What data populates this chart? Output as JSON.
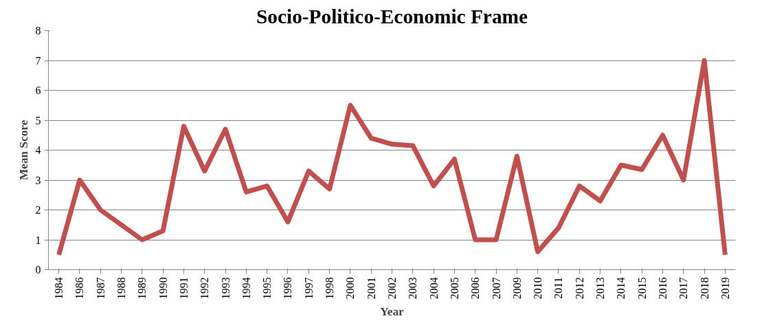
{
  "chart_data": {
    "type": "line",
    "title": "Socio-Politico-Economic Frame",
    "xlabel": "Year",
    "ylabel": "Mean Score",
    "categories": [
      "1984",
      "1986",
      "1987",
      "1988",
      "1989",
      "1990",
      "1991",
      "1992",
      "1993",
      "1994",
      "1995",
      "1996",
      "1997",
      "1998",
      "2000",
      "2001",
      "2002",
      "2003",
      "2004",
      "2005",
      "2006",
      "2007",
      "2009",
      "2010",
      "2011",
      "2012",
      "2013",
      "2014",
      "2015",
      "2016",
      "2017",
      "2018",
      "2019"
    ],
    "series": [
      {
        "color": "#c0504d",
        "values": [
          0.5,
          3.0,
          2.0,
          1.5,
          1.0,
          1.3,
          4.8,
          3.3,
          4.7,
          2.6,
          2.8,
          1.6,
          3.3,
          2.7,
          5.5,
          4.4,
          4.2,
          4.15,
          2.8,
          3.7,
          1.0,
          1.0,
          3.8,
          0.6,
          1.4,
          2.8,
          2.3,
          3.5,
          3.35,
          4.5,
          3.0,
          7.0,
          0.5
        ]
      }
    ],
    "ylim": [
      0,
      8
    ],
    "yticks": [
      0,
      1,
      2,
      3,
      4,
      5,
      6,
      7,
      8
    ],
    "grid": "y",
    "marker": "none",
    "line_style": "solid"
  }
}
